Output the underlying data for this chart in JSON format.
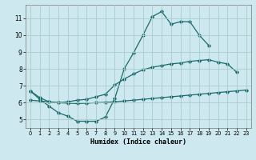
{
  "xlabel": "Humidex (Indice chaleur)",
  "bg_color": "#cde8ee",
  "grid_color": "#aacccc",
  "line_color": "#1a6b6b",
  "xlim": [
    -0.5,
    23.5
  ],
  "ylim": [
    4.5,
    11.8
  ],
  "xticks": [
    0,
    1,
    2,
    3,
    4,
    5,
    6,
    7,
    8,
    9,
    10,
    11,
    12,
    13,
    14,
    15,
    16,
    17,
    18,
    19,
    20,
    21,
    22,
    23
  ],
  "yticks": [
    5,
    6,
    7,
    8,
    9,
    10,
    11
  ],
  "line1_x": [
    0,
    1,
    2,
    3,
    4,
    5,
    6,
    7,
    8,
    9,
    10,
    11,
    12,
    13,
    14,
    15,
    16,
    17,
    18,
    19
  ],
  "line1_y": [
    6.7,
    6.2,
    5.8,
    5.4,
    5.2,
    4.9,
    4.9,
    4.9,
    5.15,
    6.25,
    8.0,
    8.95,
    10.0,
    11.1,
    11.4,
    10.65,
    10.8,
    10.8,
    10.0,
    9.4
  ],
  "line2_x": [
    0,
    1,
    2,
    3,
    4,
    5,
    6,
    7,
    8,
    9,
    10,
    11,
    12,
    13,
    14,
    15,
    16,
    17,
    18,
    19,
    20,
    21,
    22
  ],
  "line2_y": [
    6.7,
    6.3,
    6.05,
    6.0,
    6.05,
    6.15,
    6.2,
    6.35,
    6.5,
    7.05,
    7.4,
    7.7,
    7.95,
    8.1,
    8.2,
    8.3,
    8.35,
    8.45,
    8.5,
    8.55,
    8.4,
    8.3,
    7.8
  ],
  "line3_x": [
    0,
    1,
    2,
    3,
    4,
    5,
    6,
    7,
    8,
    9,
    10,
    11,
    12,
    13,
    14,
    15,
    16,
    17,
    18,
    19,
    20,
    21,
    22,
    23
  ],
  "line3_y": [
    6.15,
    6.1,
    6.05,
    6.0,
    5.97,
    5.95,
    5.97,
    6.0,
    6.02,
    6.05,
    6.1,
    6.15,
    6.2,
    6.25,
    6.3,
    6.35,
    6.4,
    6.45,
    6.5,
    6.55,
    6.6,
    6.65,
    6.7,
    6.75
  ]
}
